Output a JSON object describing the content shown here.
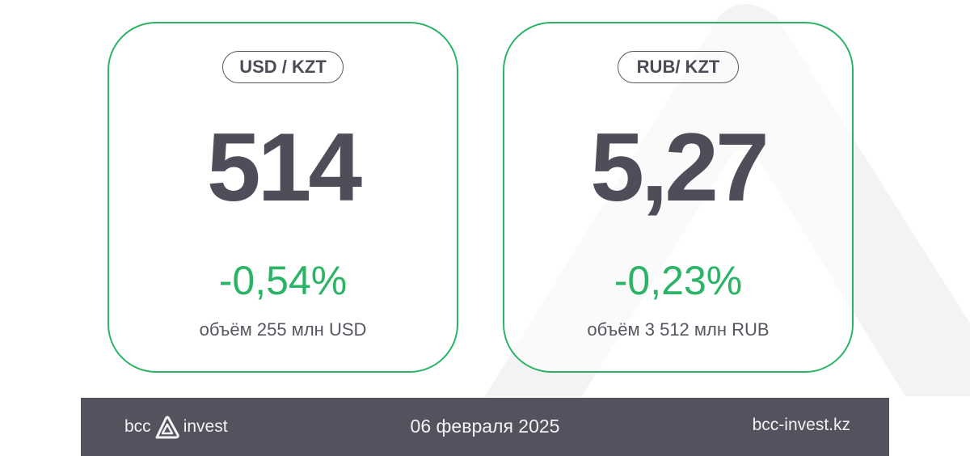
{
  "cards": [
    {
      "pair": "USD / KZT",
      "rate": "514",
      "change": "-0,54%",
      "volume": "объём 255 млн USD"
    },
    {
      "pair": "RUB/ KZT",
      "rate": "5,27",
      "change": "-0,23%",
      "volume": "объём 3 512 млн RUB"
    }
  ],
  "footer": {
    "logo_left": "bcc",
    "logo_right": "invest",
    "date": "06 февраля 2025",
    "website": "bcc-invest.kz"
  },
  "colors": {
    "accent": "#2bb466",
    "text_dark": "#4d4e59",
    "footer_bg": "#52535f"
  },
  "icons": [
    "bcc-logo-triangle-icon",
    "watermark-triangle-icon"
  ]
}
